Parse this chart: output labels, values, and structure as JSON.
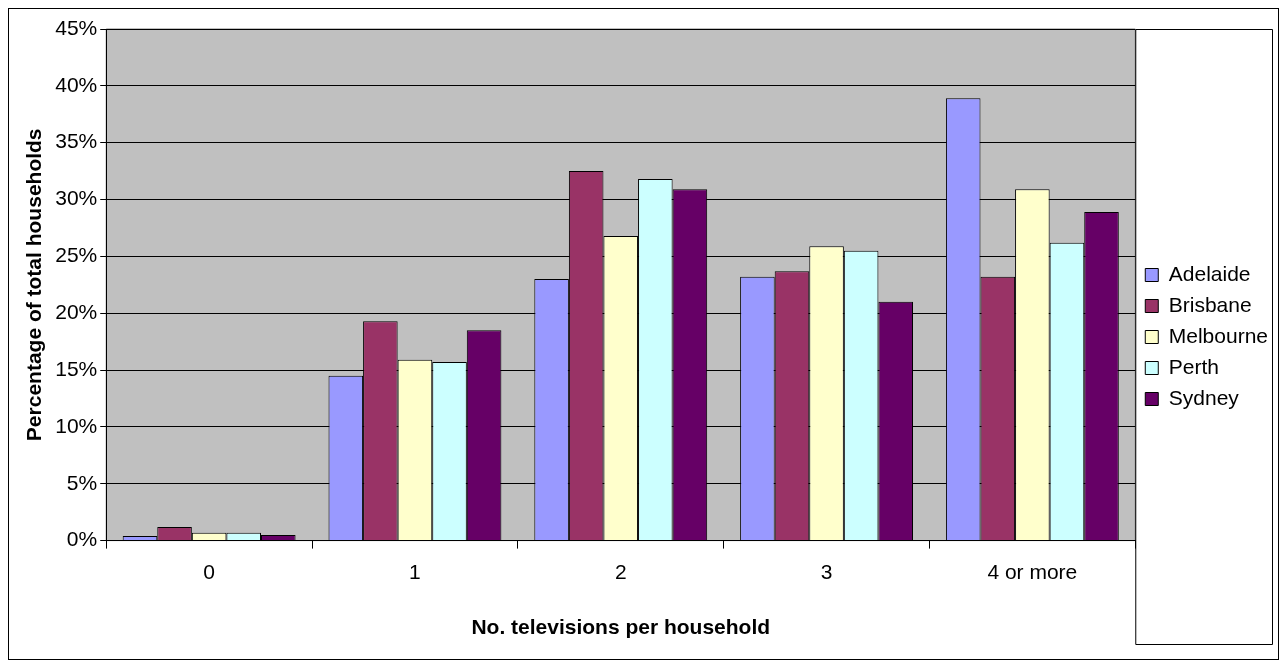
{
  "chart_data": {
    "type": "bar",
    "xlabel": "No. televisions per household",
    "ylabel": "Percentage of total households",
    "categories": [
      "0",
      "1",
      "2",
      "3",
      "4 or more"
    ],
    "series": [
      {
        "name": "Adelaide",
        "color": "#9999ff",
        "values": [
          0.4,
          14.5,
          23.0,
          23.2,
          38.9
        ]
      },
      {
        "name": "Brisbane",
        "color": "#993366",
        "values": [
          1.2,
          19.3,
          32.5,
          23.7,
          23.2
        ]
      },
      {
        "name": "Melbourne",
        "color": "#ffffcc",
        "values": [
          0.7,
          15.9,
          26.8,
          25.9,
          30.9
        ]
      },
      {
        "name": "Perth",
        "color": "#ccffff",
        "values": [
          0.7,
          15.7,
          31.8,
          25.5,
          26.2
        ]
      },
      {
        "name": "Sydney",
        "color": "#660066",
        "values": [
          0.5,
          18.5,
          30.9,
          21.0,
          28.9
        ]
      }
    ],
    "ylim": [
      0,
      45
    ],
    "yticks": [
      {
        "value": 0,
        "label": "0%"
      },
      {
        "value": 5,
        "label": "5%"
      },
      {
        "value": 10,
        "label": "10%"
      },
      {
        "value": 15,
        "label": "15%"
      },
      {
        "value": 20,
        "label": "20%"
      },
      {
        "value": 25,
        "label": "25%"
      },
      {
        "value": 30,
        "label": "30%"
      },
      {
        "value": 35,
        "label": "35%"
      },
      {
        "value": 40,
        "label": "40%"
      },
      {
        "value": 45,
        "label": "45%"
      }
    ],
    "grid": "y",
    "legend": "right"
  }
}
